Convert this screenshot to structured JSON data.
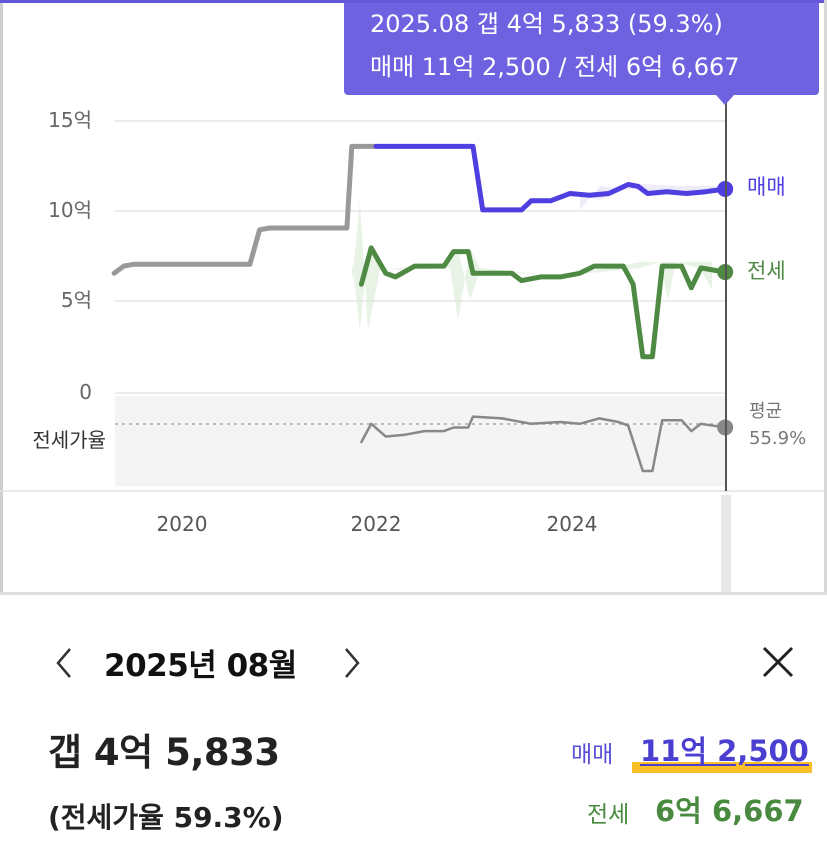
{
  "tooltip": {
    "line1": "2025.08  갭 4억 5,833 (59.3%)",
    "line2": "매매 11억 2,500 / 전세 6억 6,667"
  },
  "chart_data": {
    "type": "line",
    "x_ticks": [
      "2020",
      "2022",
      "2024"
    ],
    "y_ticks": [
      "15억",
      "10억",
      "5억",
      "0"
    ],
    "ylim": [
      0,
      15
    ],
    "sub_panel_label": "전세가율",
    "avg_label": "평균",
    "avg_value": "55.9%",
    "series": [
      {
        "name": "매매",
        "color": "#4f3fe0",
        "before_color": "#999999",
        "points": [
          [
            2019.3,
            6.6
          ],
          [
            2019.4,
            7.0
          ],
          [
            2019.5,
            7.1
          ],
          [
            2020.7,
            7.1
          ],
          [
            2020.8,
            9.0
          ],
          [
            2020.9,
            9.1
          ],
          [
            2021.6,
            9.1
          ],
          [
            2021.7,
            9.1
          ],
          [
            2021.75,
            13.6
          ],
          [
            2021.85,
            13.6
          ],
          [
            2022.0,
            13.6
          ],
          [
            2023.0,
            13.6
          ],
          [
            2023.1,
            10.1
          ],
          [
            2023.5,
            10.1
          ],
          [
            2023.6,
            10.6
          ],
          [
            2023.8,
            10.6
          ],
          [
            2024.0,
            11.0
          ],
          [
            2024.2,
            10.9
          ],
          [
            2024.4,
            11.0
          ],
          [
            2024.6,
            11.5
          ],
          [
            2024.7,
            11.4
          ],
          [
            2024.8,
            11.0
          ],
          [
            2025.0,
            11.1
          ],
          [
            2025.2,
            11.0
          ],
          [
            2025.4,
            11.1
          ],
          [
            2025.6,
            11.25
          ]
        ],
        "highlight_start": 2022.0
      },
      {
        "name": "전세",
        "color": "#4e8a43",
        "points": [
          [
            2021.85,
            6.0
          ],
          [
            2021.95,
            8.0
          ],
          [
            2022.1,
            6.6
          ],
          [
            2022.2,
            6.4
          ],
          [
            2022.4,
            7.0
          ],
          [
            2022.7,
            7.0
          ],
          [
            2022.8,
            7.8
          ],
          [
            2022.95,
            7.8
          ],
          [
            2023.0,
            6.6
          ],
          [
            2023.2,
            6.6
          ],
          [
            2023.4,
            6.6
          ],
          [
            2023.5,
            6.2
          ],
          [
            2023.7,
            6.4
          ],
          [
            2023.9,
            6.4
          ],
          [
            2024.1,
            6.6
          ],
          [
            2024.25,
            7.0
          ],
          [
            2024.55,
            7.0
          ],
          [
            2024.65,
            6.0
          ],
          [
            2024.75,
            2.0
          ],
          [
            2024.85,
            2.0
          ],
          [
            2024.95,
            7.0
          ],
          [
            2025.15,
            7.0
          ],
          [
            2025.25,
            5.8
          ],
          [
            2025.35,
            6.9
          ],
          [
            2025.6,
            6.67
          ]
        ]
      },
      {
        "name": "전세가율",
        "color": "#888888",
        "points": [
          [
            2021.85,
            -2.7
          ],
          [
            2021.95,
            -1.7
          ],
          [
            2022.1,
            -2.4
          ],
          [
            2022.3,
            -2.3
          ],
          [
            2022.5,
            -2.1
          ],
          [
            2022.7,
            -2.1
          ],
          [
            2022.8,
            -1.9
          ],
          [
            2022.95,
            -1.9
          ],
          [
            2023.0,
            -1.3
          ],
          [
            2023.3,
            -1.4
          ],
          [
            2023.6,
            -1.7
          ],
          [
            2023.9,
            -1.6
          ],
          [
            2024.1,
            -1.7
          ],
          [
            2024.3,
            -1.4
          ],
          [
            2024.5,
            -1.6
          ],
          [
            2024.6,
            -1.8
          ],
          [
            2024.75,
            -4.3
          ],
          [
            2024.85,
            -4.3
          ],
          [
            2024.95,
            -1.5
          ],
          [
            2025.15,
            -1.5
          ],
          [
            2025.25,
            -2.1
          ],
          [
            2025.35,
            -1.7
          ],
          [
            2025.6,
            -1.9
          ]
        ]
      }
    ],
    "selected_x": 2025.6
  },
  "detail": {
    "month": "2025년 08월",
    "gap": "갭 4억 5,833",
    "ratio": "(전세가율 59.3%)",
    "sale_label": "매매",
    "sale_value": "11억 2,500",
    "rent_label": "전세",
    "rent_value": "6억 6,667"
  },
  "colors": {
    "accent": "#6f62e0",
    "sale": "#4f3fe0",
    "rent": "#4e8a43",
    "highlight": "#f7c02a"
  }
}
